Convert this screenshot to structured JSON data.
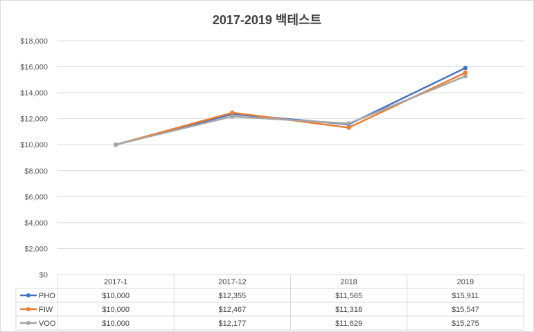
{
  "chart_data": {
    "type": "line",
    "title": "2017-2019 백테스트",
    "categories": [
      "2017-1",
      "2017-12",
      "2018",
      "2019"
    ],
    "series": [
      {
        "name": "PHO",
        "color": "#4472c4",
        "values": [
          10000,
          12355,
          11565,
          15911
        ],
        "labels": [
          "$10,000",
          "$12,355",
          "$11,565",
          "$15,911"
        ]
      },
      {
        "name": "FIW",
        "color": "#ed7d31",
        "values": [
          10000,
          12467,
          11318,
          15547
        ],
        "labels": [
          "$10,000",
          "$12,467",
          "$11,318",
          "$15,547"
        ]
      },
      {
        "name": "VOO",
        "color": "#a5a5a5",
        "values": [
          10000,
          12177,
          11629,
          15275
        ],
        "labels": [
          "$10,000",
          "$12,177",
          "$11,629",
          "$15,275"
        ]
      }
    ],
    "ylim": [
      0,
      18000
    ],
    "yticks": [
      0,
      2000,
      4000,
      6000,
      8000,
      10000,
      12000,
      14000,
      16000,
      18000
    ],
    "ytick_labels": [
      "$0",
      "$2,000",
      "$4,000",
      "$6,000",
      "$8,000",
      "$10,000",
      "$12,000",
      "$14,000",
      "$16,000",
      "$18,000"
    ],
    "grid": true,
    "legend": "data-table"
  }
}
